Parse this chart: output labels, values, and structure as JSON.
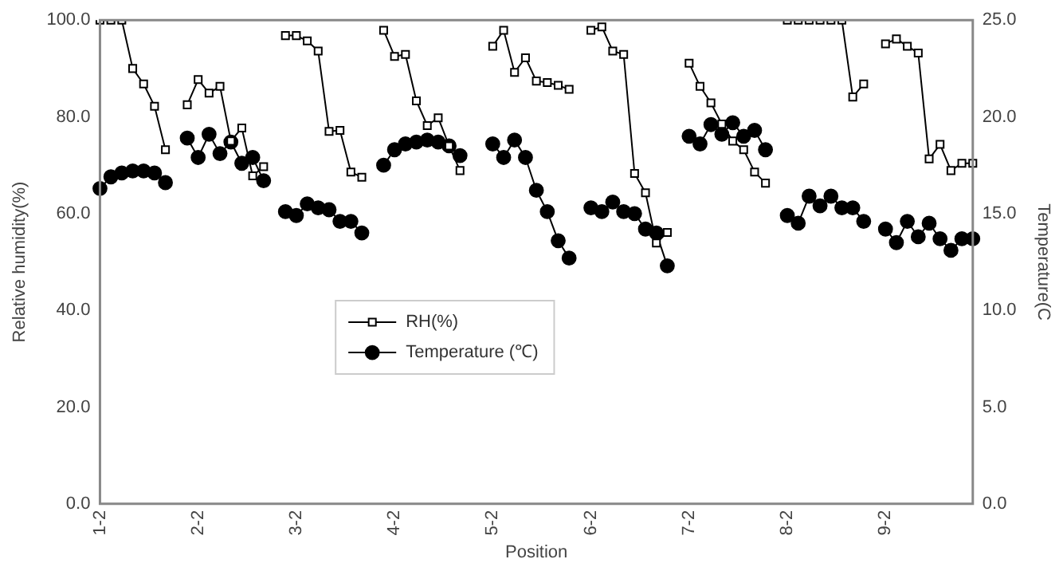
{
  "chart_data": {
    "type": "line",
    "xlabel": "Position",
    "ylabel": "Relative humidity(%)",
    "y2label": "Temperature(C",
    "categories": [
      "1-2",
      null,
      null,
      null,
      null,
      null,
      null,
      null,
      null,
      "2-2",
      null,
      null,
      null,
      null,
      null,
      null,
      null,
      null,
      "3-2",
      null,
      null,
      null,
      null,
      null,
      null,
      null,
      null,
      "4-2",
      null,
      null,
      null,
      null,
      null,
      null,
      null,
      null,
      "5-2",
      null,
      null,
      null,
      null,
      null,
      null,
      null,
      null,
      "6-2",
      null,
      null,
      null,
      null,
      null,
      null,
      null,
      null,
      "7-2",
      null,
      null,
      null,
      null,
      null,
      null,
      null,
      null,
      "8-2",
      null,
      null,
      null,
      null,
      null,
      null,
      null,
      null,
      "9-2",
      null,
      null,
      null,
      null,
      null,
      null,
      null,
      null
    ],
    "series": [
      {
        "name": "RH(%)",
        "color": "#000000",
        "marker": "square",
        "values": [
          100,
          100,
          100,
          90,
          86.8,
          82.2,
          73.2,
          null,
          82.5,
          87.7,
          84.9,
          86.3,
          75,
          77.7,
          67.8,
          69.7,
          null,
          96.8,
          96.8,
          95.7,
          93.6,
          77,
          77.2,
          68.6,
          67.5,
          null,
          97.9,
          92.5,
          92.9,
          83.3,
          78.2,
          79.8,
          74,
          68.9,
          null,
          null,
          94.6,
          97.9,
          89.2,
          92.2,
          87.4,
          87.1,
          86.5,
          85.7,
          null,
          97.9,
          98.6,
          93.6,
          92.9,
          68.3,
          64.3,
          53.9,
          56.1,
          null,
          91.1,
          86.3,
          82.9,
          78.5,
          75,
          73.2,
          68.6,
          66.3,
          null,
          100,
          100,
          100,
          100,
          100,
          100,
          84.1,
          86.8,
          null,
          95.1,
          96.1,
          94.6,
          93.2,
          71.3,
          74.3,
          68.9,
          70.4,
          70.4
        ]
      },
      {
        "name": "Temperature (℃)",
        "color": "#000000",
        "marker": "circle",
        "axis": "y2",
        "values": [
          16.3,
          16.9,
          17.1,
          17.2,
          17.2,
          17.1,
          16.6,
          null,
          18.9,
          17.9,
          19.1,
          18.1,
          18.7,
          17.6,
          17.9,
          16.7,
          null,
          15.1,
          14.9,
          15.5,
          15.3,
          15.2,
          14.6,
          14.6,
          14.0,
          null,
          17.5,
          18.3,
          18.6,
          18.7,
          18.8,
          18.7,
          18.5,
          18.0,
          null,
          null,
          18.6,
          17.9,
          18.8,
          17.9,
          16.2,
          15.1,
          13.6,
          12.7,
          null,
          15.3,
          15.1,
          15.6,
          15.1,
          15.0,
          14.2,
          14.0,
          12.3,
          null,
          19.0,
          18.6,
          19.6,
          19.1,
          19.7,
          19.0,
          19.3,
          18.3,
          null,
          14.9,
          14.5,
          15.9,
          15.4,
          15.9,
          15.3,
          15.3,
          14.6,
          null,
          14.2,
          13.5,
          14.6,
          13.8,
          14.5,
          13.7,
          13.1,
          13.7,
          13.7
        ]
      }
    ],
    "ylim": [
      0,
      100
    ],
    "yticks": [
      {
        "value": 0,
        "label": "0.0"
      },
      {
        "value": 20,
        "label": "20.0"
      },
      {
        "value": 40,
        "label": "40.0"
      },
      {
        "value": 60,
        "label": "60.0"
      },
      {
        "value": 80,
        "label": "80.0"
      },
      {
        "value": 100,
        "label": "100.0"
      }
    ],
    "y2lim": [
      0,
      25
    ],
    "y2ticks": [
      {
        "value": 0,
        "label": "0.0"
      },
      {
        "value": 5,
        "label": "5.0"
      },
      {
        "value": 10,
        "label": "10.0"
      },
      {
        "value": 15,
        "label": "15.0"
      },
      {
        "value": 20,
        "label": "20.0"
      },
      {
        "value": 25,
        "label": "25.0"
      }
    ],
    "grid": false,
    "legend": "center",
    "line_style": "solid"
  }
}
